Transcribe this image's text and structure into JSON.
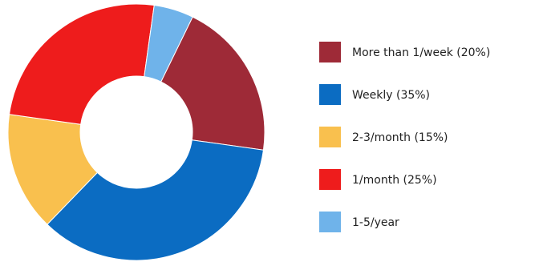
{
  "chart_data": {
    "type": "pie",
    "title": "",
    "donut": true,
    "start_angle_deg": -64,
    "legend_position": "right",
    "categories": [
      "More than 1/week (20%)",
      "Weekly (35%)",
      "2-3/month (15%)",
      "1/month (25%)",
      "1-5/year"
    ],
    "values": [
      20,
      35,
      15,
      25,
      5
    ],
    "colors": [
      "#9e2a37",
      "#0b6cc2",
      "#f9c04e",
      "#ee1c1c",
      "#6fb3ea"
    ]
  }
}
